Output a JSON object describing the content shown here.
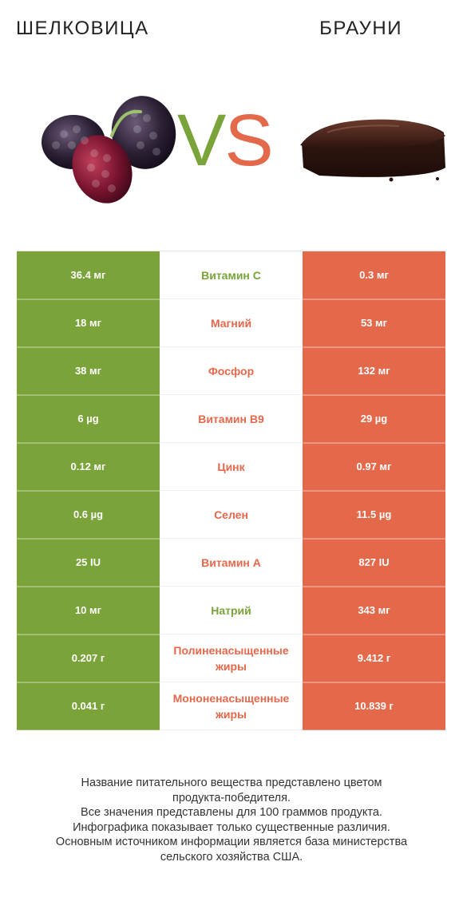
{
  "colors": {
    "green": "#7aa33a",
    "orange": "#e4694b"
  },
  "header": {
    "left_title": "ШЕЛКОВИЦА",
    "right_title": "БРАУНИ"
  },
  "vs": {
    "v": "V",
    "s": "S"
  },
  "rows": [
    {
      "left": "36.4 мг",
      "nutrient": "Витамин C",
      "right": "0.3 мг",
      "winner": "left"
    },
    {
      "left": "18 мг",
      "nutrient": "Магний",
      "right": "53 мг",
      "winner": "right"
    },
    {
      "left": "38 мг",
      "nutrient": "Фосфор",
      "right": "132 мг",
      "winner": "right"
    },
    {
      "left": "6 µg",
      "nutrient": "Витамин B9",
      "right": "29 µg",
      "winner": "right"
    },
    {
      "left": "0.12 мг",
      "nutrient": "Цинк",
      "right": "0.97 мг",
      "winner": "right"
    },
    {
      "left": "0.6 µg",
      "nutrient": "Селен",
      "right": "11.5 µg",
      "winner": "right"
    },
    {
      "left": "25 IU",
      "nutrient": "Витамин A",
      "right": "827 IU",
      "winner": "right"
    },
    {
      "left": "10 мг",
      "nutrient": "Натрий",
      "right": "343 мг",
      "winner": "left"
    },
    {
      "left": "0.207 г",
      "nutrient": "Полиненасыщенные жиры",
      "right": "9.412 г",
      "winner": "right"
    },
    {
      "left": "0.041 г",
      "nutrient": "Мононенасыщенные жиры",
      "right": "10.839 г",
      "winner": "right"
    }
  ],
  "footer": {
    "lines": [
      "Название питательного вещества представлено цветом",
      "продукта-победителя.",
      "Все значения представлены для 100 граммов продукта.",
      "Инфографика показывает только существенные различия.",
      "Основным источником информации является база министерства",
      "сельского хозяйства США."
    ]
  }
}
